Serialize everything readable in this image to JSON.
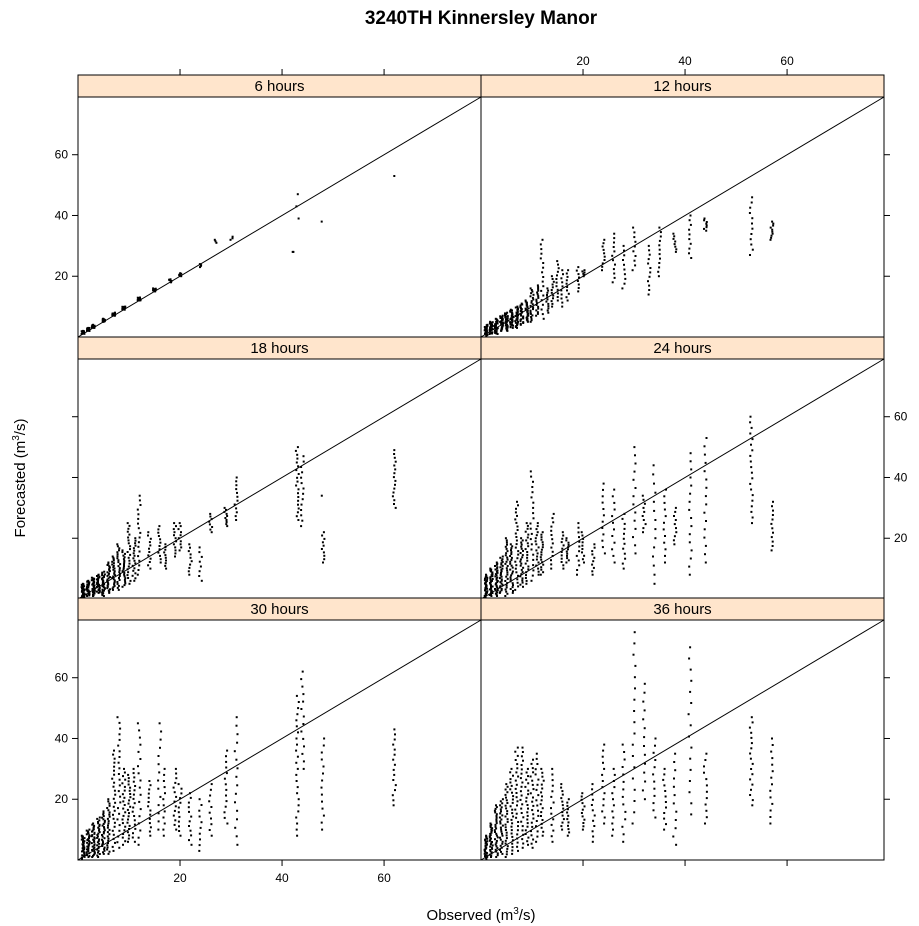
{
  "chart_data": {
    "type": "scatter",
    "title": "3240TH Kinnersley Manor",
    "xlabel": {
      "main": "Observed (m",
      "sup": "3",
      "tail": "/s)"
    },
    "ylabel": {
      "main": "Forecasted (m",
      "sup": "3",
      "tail": "/s)"
    },
    "xlim": [
      0,
      79
    ],
    "ylim": [
      0,
      79
    ],
    "x_ticks": [
      20,
      40,
      60
    ],
    "y_ticks": [
      20,
      40,
      60
    ],
    "x_tick_labels": [
      "20",
      "40",
      "60"
    ],
    "y_tick_labels": [
      "20",
      "40",
      "60"
    ],
    "reference_line": "y = x",
    "panel_strip_color": "#ffe5cc",
    "point_color": "#000000",
    "panels": [
      {
        "strip": "6 hours",
        "clusters": [
          [
            1,
            1,
            2,
            20
          ],
          [
            2,
            2,
            3,
            20
          ],
          [
            3,
            3,
            4,
            20
          ],
          [
            5,
            5,
            6,
            20
          ],
          [
            7,
            7,
            8,
            20
          ],
          [
            9,
            9,
            10,
            20
          ],
          [
            12,
            12,
            13,
            14
          ],
          [
            15,
            15,
            16,
            10
          ],
          [
            18,
            18,
            19,
            8
          ],
          [
            20,
            20,
            21,
            6
          ],
          [
            24,
            23,
            24,
            4
          ],
          [
            27,
            31,
            32,
            3
          ],
          [
            30,
            32,
            33,
            3
          ],
          [
            42,
            28,
            28,
            2
          ],
          [
            43,
            39,
            47,
            3
          ],
          [
            48,
            38,
            38,
            1
          ],
          [
            62,
            53,
            53,
            1
          ]
        ]
      },
      {
        "strip": "12 hours",
        "clusters": [
          [
            1,
            0.5,
            4,
            30
          ],
          [
            2,
            1,
            5,
            30
          ],
          [
            3,
            1,
            6,
            30
          ],
          [
            4,
            2,
            7,
            28
          ],
          [
            5,
            2,
            8,
            28
          ],
          [
            6,
            3,
            9,
            26
          ],
          [
            7,
            3,
            10,
            26
          ],
          [
            8,
            4,
            11,
            24
          ],
          [
            9,
            5,
            12,
            22
          ],
          [
            10,
            5,
            16,
            22
          ],
          [
            11,
            7,
            17,
            18
          ],
          [
            12,
            6,
            32,
            18
          ],
          [
            13,
            8,
            16,
            12
          ],
          [
            14,
            10,
            20,
            12
          ],
          [
            15,
            12,
            25,
            12
          ],
          [
            16,
            10,
            22,
            10
          ],
          [
            17,
            12,
            22,
            10
          ],
          [
            19,
            15,
            23,
            8
          ],
          [
            20,
            20,
            22,
            6
          ],
          [
            24,
            22,
            32,
            10
          ],
          [
            26,
            18,
            34,
            12
          ],
          [
            28,
            16,
            30,
            10
          ],
          [
            30,
            22,
            36,
            10
          ],
          [
            33,
            14,
            30,
            12
          ],
          [
            35,
            20,
            36,
            12
          ],
          [
            38,
            28,
            34,
            8
          ],
          [
            41,
            26,
            40,
            10
          ],
          [
            44,
            35,
            39,
            8
          ],
          [
            53,
            27,
            46,
            12
          ],
          [
            57,
            32,
            38,
            10
          ]
        ]
      },
      {
        "strip": "18 hours",
        "clusters": [
          [
            1,
            0.5,
            5,
            30
          ],
          [
            2,
            1,
            6,
            30
          ],
          [
            3,
            1,
            7,
            30
          ],
          [
            4,
            2,
            8,
            28
          ],
          [
            5,
            1,
            9,
            28
          ],
          [
            6,
            2,
            12,
            26
          ],
          [
            7,
            3,
            14,
            26
          ],
          [
            8,
            3,
            18,
            24
          ],
          [
            9,
            4,
            16,
            22
          ],
          [
            10,
            5,
            25,
            22
          ],
          [
            11,
            6,
            20,
            18
          ],
          [
            12,
            8,
            34,
            18
          ],
          [
            14,
            10,
            22,
            12
          ],
          [
            16,
            12,
            24,
            12
          ],
          [
            17,
            10,
            18,
            10
          ],
          [
            19,
            14,
            25,
            12
          ],
          [
            20,
            16,
            25,
            10
          ],
          [
            22,
            8,
            18,
            10
          ],
          [
            24,
            6,
            17,
            8
          ],
          [
            26,
            22,
            28,
            8
          ],
          [
            29,
            24,
            30,
            10
          ],
          [
            31,
            26,
            40,
            12
          ],
          [
            43,
            26,
            50,
            20
          ],
          [
            44,
            24,
            47,
            14
          ],
          [
            48,
            12,
            22,
            10
          ],
          [
            48,
            34,
            35,
            1
          ],
          [
            62,
            30,
            49,
            16
          ]
        ]
      },
      {
        "strip": "24 hours",
        "clusters": [
          [
            1,
            0.5,
            8,
            30
          ],
          [
            2,
            1,
            10,
            30
          ],
          [
            3,
            1,
            12,
            30
          ],
          [
            4,
            2,
            14,
            28
          ],
          [
            5,
            1,
            20,
            28
          ],
          [
            6,
            2,
            18,
            26
          ],
          [
            7,
            3,
            32,
            26
          ],
          [
            8,
            4,
            20,
            24
          ],
          [
            9,
            5,
            25,
            22
          ],
          [
            10,
            6,
            42,
            22
          ],
          [
            11,
            8,
            25,
            18
          ],
          [
            12,
            8,
            22,
            18
          ],
          [
            14,
            10,
            28,
            14
          ],
          [
            16,
            10,
            22,
            12
          ],
          [
            17,
            12,
            20,
            12
          ],
          [
            19,
            8,
            25,
            12
          ],
          [
            20,
            12,
            22,
            10
          ],
          [
            22,
            8,
            18,
            10
          ],
          [
            24,
            15,
            38,
            12
          ],
          [
            26,
            12,
            36,
            12
          ],
          [
            28,
            10,
            28,
            12
          ],
          [
            30,
            15,
            50,
            14
          ],
          [
            32,
            22,
            34,
            10
          ],
          [
            34,
            5,
            44,
            14
          ],
          [
            36,
            12,
            36,
            12
          ],
          [
            38,
            18,
            30,
            10
          ],
          [
            41,
            8,
            48,
            16
          ],
          [
            44,
            12,
            53,
            16
          ],
          [
            53,
            25,
            60,
            20
          ],
          [
            57,
            16,
            32,
            12
          ]
        ]
      },
      {
        "strip": "30 hours",
        "clusters": [
          [
            1,
            0.5,
            8,
            30
          ],
          [
            2,
            1,
            10,
            30
          ],
          [
            3,
            1,
            12,
            30
          ],
          [
            4,
            1,
            14,
            28
          ],
          [
            5,
            2,
            16,
            28
          ],
          [
            6,
            2,
            20,
            26
          ],
          [
            7,
            3,
            36,
            26
          ],
          [
            8,
            4,
            47,
            24
          ],
          [
            9,
            5,
            30,
            22
          ],
          [
            10,
            6,
            28,
            22
          ],
          [
            11,
            6,
            30,
            18
          ],
          [
            12,
            5,
            45,
            18
          ],
          [
            14,
            8,
            26,
            14
          ],
          [
            16,
            10,
            45,
            14
          ],
          [
            17,
            8,
            30,
            12
          ],
          [
            19,
            10,
            30,
            14
          ],
          [
            20,
            8,
            25,
            12
          ],
          [
            22,
            5,
            22,
            12
          ],
          [
            24,
            3,
            20,
            10
          ],
          [
            26,
            8,
            25,
            10
          ],
          [
            29,
            12,
            36,
            14
          ],
          [
            31,
            5,
            47,
            16
          ],
          [
            43,
            8,
            54,
            24
          ],
          [
            44,
            30,
            62,
            14
          ],
          [
            48,
            10,
            40,
            14
          ],
          [
            62,
            18,
            43,
            16
          ]
        ]
      },
      {
        "strip": "36 hours",
        "clusters": [
          [
            1,
            0.5,
            8,
            30
          ],
          [
            2,
            1,
            12,
            30
          ],
          [
            3,
            1,
            18,
            30
          ],
          [
            4,
            2,
            20,
            28
          ],
          [
            5,
            1,
            25,
            28
          ],
          [
            6,
            2,
            30,
            26
          ],
          [
            7,
            3,
            37,
            26
          ],
          [
            8,
            4,
            37,
            24
          ],
          [
            9,
            5,
            30,
            22
          ],
          [
            10,
            4,
            33,
            22
          ],
          [
            11,
            6,
            35,
            18
          ],
          [
            12,
            8,
            30,
            18
          ],
          [
            14,
            6,
            30,
            14
          ],
          [
            16,
            10,
            25,
            14
          ],
          [
            17,
            8,
            20,
            12
          ],
          [
            20,
            10,
            22,
            12
          ],
          [
            22,
            6,
            25,
            12
          ],
          [
            24,
            12,
            38,
            14
          ],
          [
            26,
            8,
            30,
            12
          ],
          [
            28,
            6,
            38,
            14
          ],
          [
            30,
            12,
            75,
            18
          ],
          [
            32,
            20,
            58,
            14
          ],
          [
            34,
            14,
            40,
            12
          ],
          [
            36,
            10,
            30,
            12
          ],
          [
            38,
            5,
            35,
            12
          ],
          [
            41,
            15,
            70,
            16
          ],
          [
            44,
            12,
            35,
            12
          ],
          [
            53,
            18,
            47,
            18
          ],
          [
            57,
            12,
            40,
            14
          ]
        ]
      }
    ]
  }
}
